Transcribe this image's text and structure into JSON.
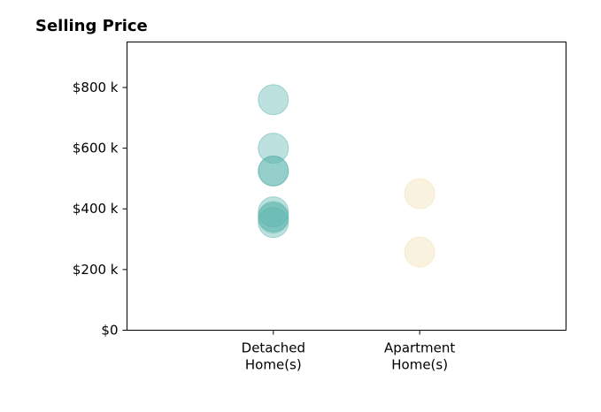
{
  "chart_data": {
    "type": "scatter",
    "title": "Selling Price",
    "xlabel": "",
    "ylabel": "",
    "categories": [
      "Detached\nHome(s)",
      "Apartment\nHome(s)"
    ],
    "xlim": [
      0,
      3
    ],
    "ylim": [
      0,
      950000
    ],
    "y_ticks": [
      0,
      200000,
      400000,
      600000,
      800000
    ],
    "y_tick_labels": [
      "$0",
      "$200 k",
      "$400 k",
      "$600 k",
      "$800 k"
    ],
    "grid": false,
    "series": [
      {
        "color": "#5ab4ac",
        "points": [
          {
            "x": 1,
            "y": 760000
          },
          {
            "x": 1,
            "y": 600000
          },
          {
            "x": 1,
            "y": 525000
          },
          {
            "x": 1,
            "y": 525000
          },
          {
            "x": 1,
            "y": 390000
          },
          {
            "x": 1,
            "y": 375000
          },
          {
            "x": 1,
            "y": 370000
          },
          {
            "x": 1,
            "y": 355000
          }
        ]
      },
      {
        "color": "#f1dfb0",
        "points": [
          {
            "x": 2,
            "y": 450000
          },
          {
            "x": 2,
            "y": 258000
          }
        ]
      }
    ]
  }
}
